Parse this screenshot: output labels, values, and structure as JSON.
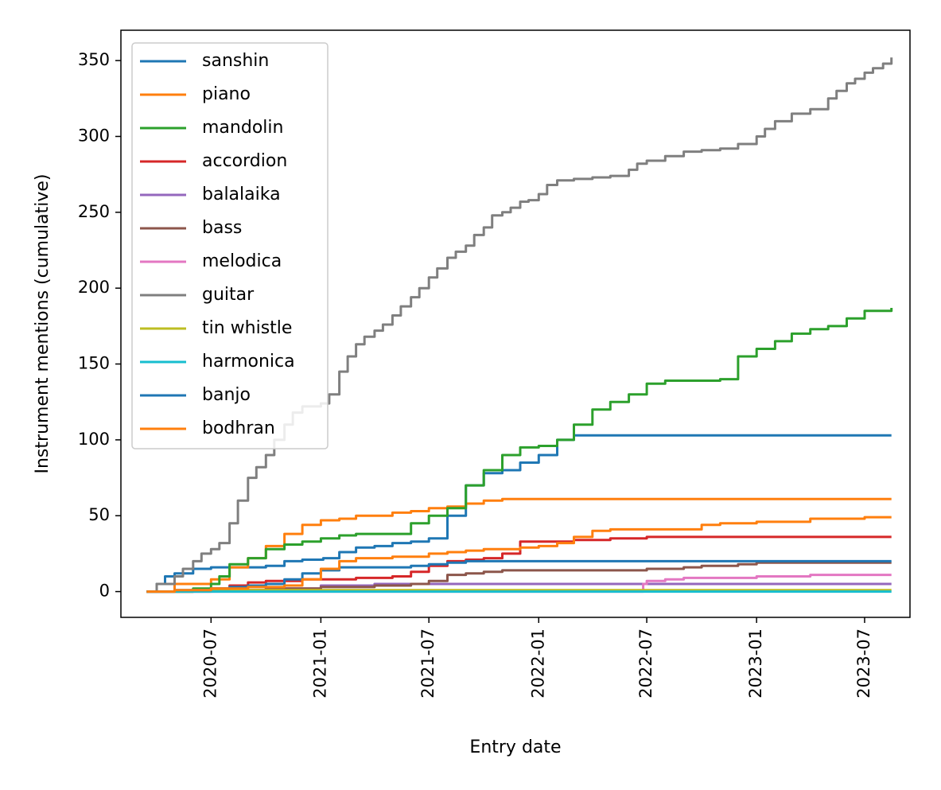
{
  "chart_data": {
    "type": "line",
    "title": "",
    "xlabel": "Entry date",
    "ylabel": "Instrument mentions (cumulative)",
    "x_ticks": [
      "2020-07",
      "2021-01",
      "2021-07",
      "2022-01",
      "2022-07",
      "2023-01",
      "2023-07"
    ],
    "y_ticks": [
      "0",
      "50",
      "100",
      "150",
      "200",
      "250",
      "300",
      "350"
    ],
    "xlim": [
      "2020-02-01",
      "2023-09-15"
    ],
    "ylim": [
      -17,
      370
    ],
    "grid": false,
    "legend_position": "top-left",
    "step": true,
    "series": [
      {
        "name": "sanshin",
        "color": "#1f77b4",
        "points": [
          [
            "2020-03-15",
            0
          ],
          [
            "2020-04-01",
            5
          ],
          [
            "2020-04-15",
            10
          ],
          [
            "2020-05-01",
            12
          ],
          [
            "2020-06-01",
            15
          ],
          [
            "2020-07-01",
            16
          ],
          [
            "2020-09-01",
            16
          ],
          [
            "2020-10-01",
            17
          ],
          [
            "2020-11-01",
            20
          ],
          [
            "2020-12-01",
            21
          ],
          [
            "2021-01-05",
            22
          ],
          [
            "2021-02-01",
            26
          ],
          [
            "2021-03-01",
            29
          ],
          [
            "2021-04-01",
            30
          ],
          [
            "2021-05-01",
            32
          ],
          [
            "2021-06-01",
            33
          ],
          [
            "2021-07-01",
            35
          ],
          [
            "2021-08-01",
            50
          ],
          [
            "2021-09-01",
            70
          ],
          [
            "2021-10-01",
            78
          ],
          [
            "2021-11-01",
            80
          ],
          [
            "2021-12-01",
            85
          ],
          [
            "2022-01-01",
            90
          ],
          [
            "2022-02-01",
            100
          ],
          [
            "2022-03-01",
            103
          ],
          [
            "2022-05-01",
            103
          ],
          [
            "2022-09-01",
            103
          ],
          [
            "2023-01-01",
            103
          ],
          [
            "2023-05-01",
            103
          ],
          [
            "2023-08-15",
            103
          ]
        ]
      },
      {
        "name": "piano",
        "color": "#ff7f0e",
        "points": [
          [
            "2020-03-15",
            0
          ],
          [
            "2020-05-01",
            5
          ],
          [
            "2020-07-01",
            8
          ],
          [
            "2020-08-01",
            16
          ],
          [
            "2020-09-01",
            22
          ],
          [
            "2020-10-01",
            30
          ],
          [
            "2020-11-01",
            38
          ],
          [
            "2020-12-01",
            44
          ],
          [
            "2021-01-01",
            47
          ],
          [
            "2021-02-01",
            48
          ],
          [
            "2021-03-01",
            50
          ],
          [
            "2021-05-01",
            52
          ],
          [
            "2021-06-01",
            53
          ],
          [
            "2021-07-01",
            55
          ],
          [
            "2021-08-01",
            56
          ],
          [
            "2021-09-01",
            58
          ],
          [
            "2021-10-01",
            60
          ],
          [
            "2021-11-01",
            61
          ],
          [
            "2022-03-01",
            61
          ],
          [
            "2022-08-01",
            61
          ],
          [
            "2023-01-01",
            61
          ],
          [
            "2023-08-15",
            61
          ]
        ]
      },
      {
        "name": "mandolin",
        "color": "#2ca02c",
        "points": [
          [
            "2020-03-15",
            0
          ],
          [
            "2020-06-01",
            2
          ],
          [
            "2020-07-01",
            5
          ],
          [
            "2020-07-15",
            10
          ],
          [
            "2020-08-01",
            18
          ],
          [
            "2020-09-01",
            22
          ],
          [
            "2020-10-01",
            28
          ],
          [
            "2020-11-01",
            31
          ],
          [
            "2020-12-01",
            33
          ],
          [
            "2021-01-01",
            35
          ],
          [
            "2021-02-01",
            37
          ],
          [
            "2021-03-01",
            38
          ],
          [
            "2021-05-01",
            38
          ],
          [
            "2021-06-01",
            45
          ],
          [
            "2021-07-01",
            50
          ],
          [
            "2021-08-01",
            55
          ],
          [
            "2021-09-01",
            70
          ],
          [
            "2021-10-01",
            80
          ],
          [
            "2021-11-01",
            90
          ],
          [
            "2021-12-01",
            95
          ],
          [
            "2022-01-01",
            96
          ],
          [
            "2022-02-01",
            100
          ],
          [
            "2022-03-01",
            110
          ],
          [
            "2022-04-01",
            120
          ],
          [
            "2022-05-01",
            125
          ],
          [
            "2022-06-01",
            130
          ],
          [
            "2022-07-01",
            137
          ],
          [
            "2022-08-01",
            139
          ],
          [
            "2022-10-01",
            139
          ],
          [
            "2022-11-01",
            140
          ],
          [
            "2022-12-01",
            155
          ],
          [
            "2023-01-01",
            160
          ],
          [
            "2023-02-01",
            165
          ],
          [
            "2023-03-01",
            170
          ],
          [
            "2023-04-01",
            173
          ],
          [
            "2023-05-01",
            175
          ],
          [
            "2023-06-01",
            180
          ],
          [
            "2023-07-01",
            185
          ],
          [
            "2023-08-15",
            187
          ]
        ]
      },
      {
        "name": "accordion",
        "color": "#d62728",
        "points": [
          [
            "2020-03-15",
            0
          ],
          [
            "2020-06-01",
            1
          ],
          [
            "2020-07-01",
            2
          ],
          [
            "2020-08-01",
            4
          ],
          [
            "2020-09-01",
            6
          ],
          [
            "2020-10-01",
            7
          ],
          [
            "2020-12-01",
            8
          ],
          [
            "2021-03-01",
            9
          ],
          [
            "2021-05-01",
            10
          ],
          [
            "2021-06-01",
            13
          ],
          [
            "2021-07-01",
            17
          ],
          [
            "2021-08-01",
            20
          ],
          [
            "2021-09-01",
            21
          ],
          [
            "2021-10-01",
            22
          ],
          [
            "2021-11-01",
            25
          ],
          [
            "2021-12-01",
            33
          ],
          [
            "2022-01-01",
            33
          ],
          [
            "2022-02-01",
            33
          ],
          [
            "2022-03-01",
            34
          ],
          [
            "2022-05-01",
            35
          ],
          [
            "2022-07-01",
            36
          ],
          [
            "2023-01-01",
            36
          ],
          [
            "2023-08-15",
            36
          ]
        ]
      },
      {
        "name": "balalaika",
        "color": "#9467bd",
        "points": [
          [
            "2020-03-15",
            0
          ],
          [
            "2020-07-01",
            1
          ],
          [
            "2020-10-01",
            2
          ],
          [
            "2021-01-01",
            4
          ],
          [
            "2021-04-01",
            5
          ],
          [
            "2021-07-01",
            5
          ],
          [
            "2022-07-01",
            5
          ],
          [
            "2023-08-15",
            5
          ]
        ]
      },
      {
        "name": "bass",
        "color": "#8c564b",
        "points": [
          [
            "2020-03-15",
            0
          ],
          [
            "2020-06-01",
            1
          ],
          [
            "2020-10-01",
            2
          ],
          [
            "2021-01-01",
            3
          ],
          [
            "2021-04-01",
            4
          ],
          [
            "2021-06-01",
            5
          ],
          [
            "2021-07-01",
            7
          ],
          [
            "2021-08-01",
            11
          ],
          [
            "2021-09-01",
            12
          ],
          [
            "2021-10-01",
            13
          ],
          [
            "2021-11-01",
            14
          ],
          [
            "2022-01-01",
            14
          ],
          [
            "2022-03-01",
            14
          ],
          [
            "2022-07-01",
            15
          ],
          [
            "2022-09-01",
            16
          ],
          [
            "2022-10-01",
            17
          ],
          [
            "2022-12-01",
            18
          ],
          [
            "2023-01-01",
            19
          ],
          [
            "2023-04-01",
            19
          ],
          [
            "2023-08-15",
            19
          ]
        ]
      },
      {
        "name": "melodica",
        "color": "#e377c2",
        "points": [
          [
            "2020-03-15",
            0
          ],
          [
            "2022-06-20",
            0
          ],
          [
            "2022-06-25",
            5
          ],
          [
            "2022-07-01",
            7
          ],
          [
            "2022-08-01",
            8
          ],
          [
            "2022-09-01",
            9
          ],
          [
            "2022-11-01",
            9
          ],
          [
            "2023-01-01",
            10
          ],
          [
            "2023-03-01",
            10
          ],
          [
            "2023-04-01",
            11
          ],
          [
            "2023-08-15",
            11
          ]
        ]
      },
      {
        "name": "guitar",
        "color": "#7f7f7f",
        "points": [
          [
            "2020-03-15",
            0
          ],
          [
            "2020-04-01",
            5
          ],
          [
            "2020-05-01",
            10
          ],
          [
            "2020-05-15",
            15
          ],
          [
            "2020-06-01",
            20
          ],
          [
            "2020-06-15",
            25
          ],
          [
            "2020-07-01",
            28
          ],
          [
            "2020-07-15",
            32
          ],
          [
            "2020-08-01",
            45
          ],
          [
            "2020-08-15",
            60
          ],
          [
            "2020-09-01",
            75
          ],
          [
            "2020-09-15",
            82
          ],
          [
            "2020-10-01",
            90
          ],
          [
            "2020-10-15",
            100
          ],
          [
            "2020-11-01",
            110
          ],
          [
            "2020-11-15",
            118
          ],
          [
            "2020-12-01",
            122
          ],
          [
            "2021-01-01",
            124
          ],
          [
            "2021-01-15",
            130
          ],
          [
            "2021-02-01",
            145
          ],
          [
            "2021-02-15",
            155
          ],
          [
            "2021-03-01",
            163
          ],
          [
            "2021-03-15",
            168
          ],
          [
            "2021-04-01",
            172
          ],
          [
            "2021-04-15",
            176
          ],
          [
            "2021-05-01",
            182
          ],
          [
            "2021-05-15",
            188
          ],
          [
            "2021-06-01",
            194
          ],
          [
            "2021-06-15",
            200
          ],
          [
            "2021-07-01",
            207
          ],
          [
            "2021-07-15",
            213
          ],
          [
            "2021-08-01",
            220
          ],
          [
            "2021-08-15",
            224
          ],
          [
            "2021-09-01",
            228
          ],
          [
            "2021-09-15",
            235
          ],
          [
            "2021-10-01",
            240
          ],
          [
            "2021-10-15",
            248
          ],
          [
            "2021-11-01",
            250
          ],
          [
            "2021-11-15",
            253
          ],
          [
            "2021-12-01",
            257
          ],
          [
            "2021-12-15",
            258
          ],
          [
            "2022-01-01",
            262
          ],
          [
            "2022-01-15",
            268
          ],
          [
            "2022-02-01",
            271
          ],
          [
            "2022-03-01",
            272
          ],
          [
            "2022-04-01",
            273
          ],
          [
            "2022-05-01",
            274
          ],
          [
            "2022-06-01",
            278
          ],
          [
            "2022-06-15",
            282
          ],
          [
            "2022-07-01",
            284
          ],
          [
            "2022-08-01",
            287
          ],
          [
            "2022-09-01",
            290
          ],
          [
            "2022-10-01",
            291
          ],
          [
            "2022-11-01",
            292
          ],
          [
            "2022-12-01",
            295
          ],
          [
            "2023-01-01",
            300
          ],
          [
            "2023-01-15",
            305
          ],
          [
            "2023-02-01",
            310
          ],
          [
            "2023-03-01",
            315
          ],
          [
            "2023-04-01",
            318
          ],
          [
            "2023-05-01",
            325
          ],
          [
            "2023-05-15",
            330
          ],
          [
            "2023-06-01",
            335
          ],
          [
            "2023-06-15",
            338
          ],
          [
            "2023-07-01",
            342
          ],
          [
            "2023-07-15",
            345
          ],
          [
            "2023-08-01",
            348
          ],
          [
            "2023-08-15",
            352
          ]
        ]
      },
      {
        "name": "tin whistle",
        "color": "#bcbd22",
        "points": [
          [
            "2020-03-15",
            0
          ],
          [
            "2020-06-01",
            1
          ],
          [
            "2023-08-15",
            1
          ]
        ]
      },
      {
        "name": "harmonica",
        "color": "#17becf",
        "points": [
          [
            "2020-03-15",
            0
          ],
          [
            "2023-08-15",
            0
          ]
        ]
      },
      {
        "name": "banjo",
        "color": "#1f77b4",
        "points": [
          [
            "2020-03-15",
            0
          ],
          [
            "2020-05-01",
            1
          ],
          [
            "2020-07-01",
            2
          ],
          [
            "2020-08-01",
            3
          ],
          [
            "2020-09-01",
            4
          ],
          [
            "2020-10-01",
            5
          ],
          [
            "2020-11-01",
            8
          ],
          [
            "2020-12-01",
            12
          ],
          [
            "2021-01-01",
            14
          ],
          [
            "2021-02-01",
            16
          ],
          [
            "2021-05-01",
            16
          ],
          [
            "2021-06-01",
            17
          ],
          [
            "2021-07-01",
            18
          ],
          [
            "2021-08-01",
            19
          ],
          [
            "2021-09-01",
            20
          ],
          [
            "2022-01-01",
            20
          ],
          [
            "2022-07-01",
            20
          ],
          [
            "2023-01-01",
            20
          ],
          [
            "2023-08-15",
            20
          ]
        ]
      },
      {
        "name": "bodhran",
        "color": "#ff7f0e",
        "points": [
          [
            "2020-03-15",
            0
          ],
          [
            "2020-05-01",
            1
          ],
          [
            "2020-07-01",
            2
          ],
          [
            "2020-09-01",
            3
          ],
          [
            "2020-11-01",
            4
          ],
          [
            "2020-12-01",
            8
          ],
          [
            "2021-01-01",
            15
          ],
          [
            "2021-02-01",
            20
          ],
          [
            "2021-03-01",
            22
          ],
          [
            "2021-05-01",
            23
          ],
          [
            "2021-07-01",
            25
          ],
          [
            "2021-08-01",
            26
          ],
          [
            "2021-09-01",
            27
          ],
          [
            "2021-10-01",
            28
          ],
          [
            "2021-11-01",
            28
          ],
          [
            "2021-12-01",
            29
          ],
          [
            "2022-01-01",
            30
          ],
          [
            "2022-02-01",
            32
          ],
          [
            "2022-03-01",
            36
          ],
          [
            "2022-04-01",
            40
          ],
          [
            "2022-05-01",
            41
          ],
          [
            "2022-06-01",
            41
          ],
          [
            "2022-09-01",
            41
          ],
          [
            "2022-10-01",
            44
          ],
          [
            "2022-11-01",
            45
          ],
          [
            "2023-01-01",
            46
          ],
          [
            "2023-04-01",
            48
          ],
          [
            "2023-06-01",
            48
          ],
          [
            "2023-07-01",
            49
          ],
          [
            "2023-08-15",
            49
          ]
        ]
      }
    ]
  }
}
